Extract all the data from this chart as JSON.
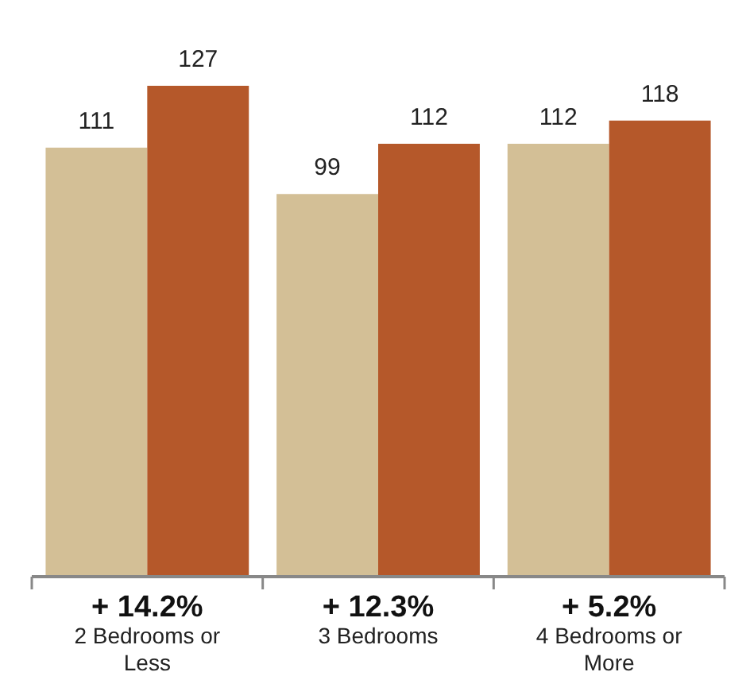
{
  "chart_data": {
    "type": "bar",
    "categories": [
      "2 Bedrooms or Less",
      "3 Bedrooms",
      "4 Bedrooms or More"
    ],
    "series": [
      {
        "color": "#d3bf96",
        "values": [
          111,
          99,
          112
        ]
      },
      {
        "color": "#b5582a",
        "values": [
          127,
          112,
          118
        ]
      }
    ],
    "data_labels": true,
    "annotations": [
      "+ 14.2%",
      "+ 12.3%",
      "+ 5.2%"
    ]
  }
}
